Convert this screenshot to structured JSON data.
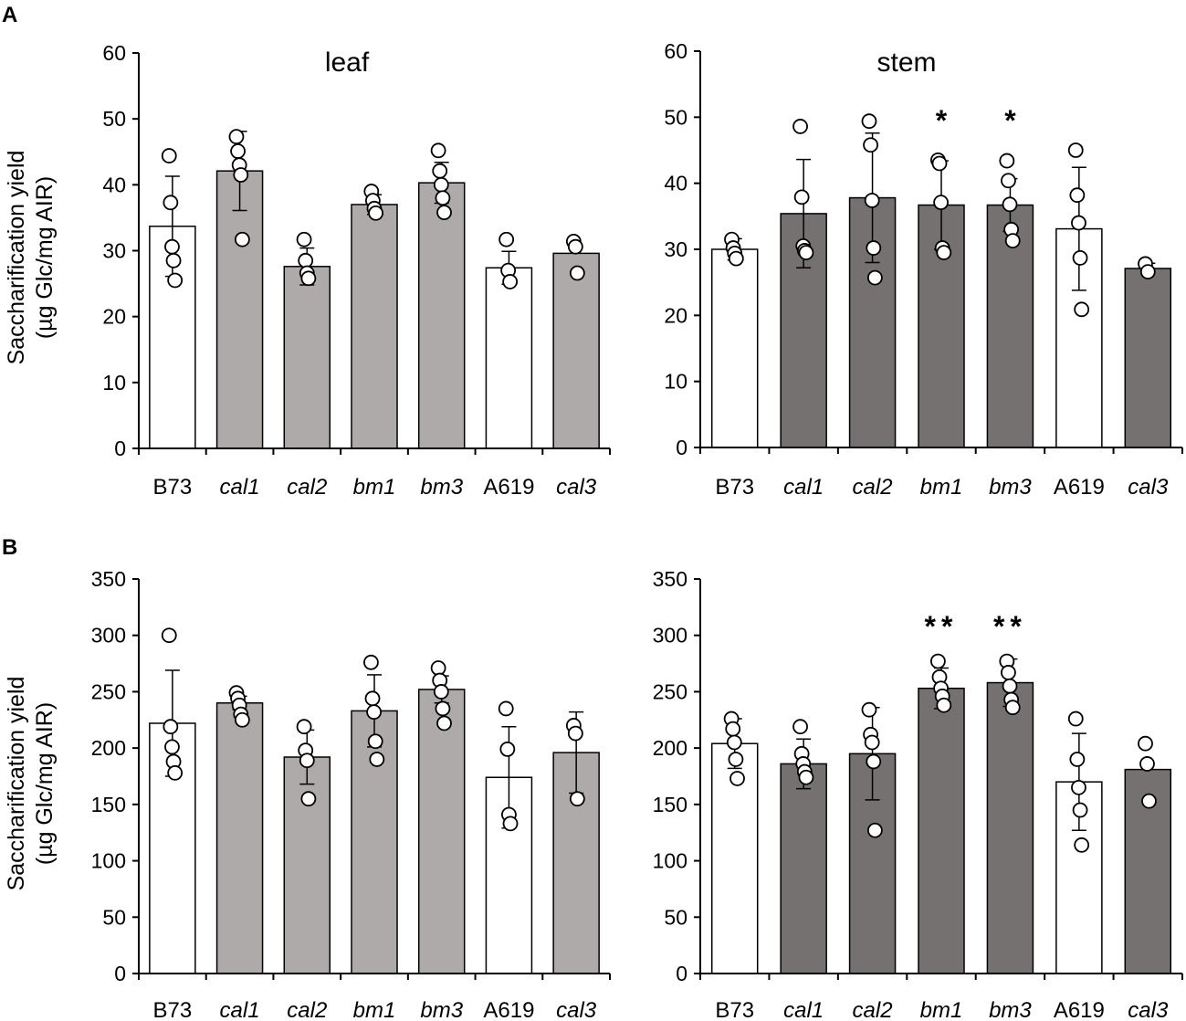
{
  "figure": {
    "panel_labels": [
      "A",
      "B"
    ],
    "ylabel_line1": "Saccharification yield",
    "ylabel_line2": "(µg Glc/mg AIR)"
  },
  "chart_data": [
    {
      "id": "A-leaf",
      "type": "bar",
      "panel": "A",
      "title": "leaf",
      "xlabel": "",
      "ylabel": "Saccharification yield (µg Glc/mg AIR)",
      "ylim": [
        0,
        60
      ],
      "yticks": [
        0,
        10,
        20,
        30,
        40,
        50,
        60
      ],
      "categories": [
        "B73",
        "cal1",
        "cal2",
        "bm1",
        "bm3",
        "A619",
        "cal3"
      ],
      "italic": [
        false,
        true,
        true,
        true,
        true,
        false,
        true
      ],
      "values": [
        33.7,
        42.1,
        27.6,
        37.0,
        40.3,
        27.4,
        29.6
      ],
      "errors": [
        7.6,
        6.0,
        2.8,
        1.5,
        3.1,
        2.5,
        0
      ],
      "fill_colors": [
        "#ffffff",
        "#aeaaaa",
        "#aeaaaa",
        "#aeaaaa",
        "#aeaaaa",
        "#ffffff",
        "#aeaaaa"
      ],
      "points": [
        [
          44.4,
          37.3,
          30.6,
          28.5,
          25.5
        ],
        [
          47.3,
          45.1,
          43.0,
          41.5,
          31.7
        ],
        [
          31.7,
          28.5,
          26.6,
          25.8
        ],
        [
          39.0,
          37.6,
          36.4,
          35.7
        ],
        [
          45.2,
          42.1,
          40.0,
          38.0,
          35.8
        ],
        [
          31.7,
          27.0,
          25.3
        ],
        [
          31.4,
          30.6,
          26.6
        ]
      ],
      "significance": [
        "",
        "",
        "",
        "",
        "",
        "",
        ""
      ]
    },
    {
      "id": "A-stem",
      "type": "bar",
      "panel": "A",
      "title": "stem",
      "xlabel": "",
      "ylabel": "",
      "ylim": [
        0,
        60
      ],
      "yticks": [
        0,
        10,
        20,
        30,
        40,
        50,
        60
      ],
      "categories": [
        "B73",
        "cal1",
        "cal2",
        "bm1",
        "bm3",
        "A619",
        "cal3"
      ],
      "italic": [
        false,
        true,
        true,
        true,
        true,
        false,
        true
      ],
      "values": [
        30.0,
        35.4,
        37.8,
        36.7,
        36.7,
        33.1,
        27.1
      ],
      "errors": [
        1.6,
        8.2,
        9.8,
        6.7,
        4.0,
        9.3,
        0.8
      ],
      "fill_colors": [
        "#ffffff",
        "#767171",
        "#767171",
        "#767171",
        "#767171",
        "#ffffff",
        "#767171"
      ],
      "points": [
        [
          31.5,
          30.2,
          29.4,
          28.6
        ],
        [
          48.6,
          37.9,
          30.5,
          29.8,
          29.5
        ],
        [
          49.4,
          45.8,
          37.4,
          30.2,
          25.7
        ],
        [
          43.5,
          43.0,
          37.1,
          30.2,
          29.5
        ],
        [
          43.4,
          40.4,
          36.8,
          33.0,
          31.3
        ],
        [
          45.0,
          38.2,
          34.0,
          28.7,
          20.9
        ],
        [
          27.8,
          26.6
        ]
      ],
      "significance": [
        "",
        "",
        "",
        "*",
        "*",
        "",
        ""
      ]
    },
    {
      "id": "B-leaf",
      "type": "bar",
      "panel": "B",
      "title": "",
      "xlabel": "",
      "ylabel": "Saccharification yield (µg Glc/mg AIR)",
      "ylim": [
        0,
        350
      ],
      "yticks": [
        0,
        50,
        100,
        150,
        200,
        250,
        300,
        350
      ],
      "categories": [
        "B73",
        "cal1",
        "cal2",
        "bm1",
        "bm3",
        "A619",
        "cal3"
      ],
      "italic": [
        false,
        true,
        true,
        true,
        true,
        false,
        true
      ],
      "values": [
        222,
        240,
        192,
        233,
        252,
        174,
        196
      ],
      "errors": [
        47,
        6,
        24,
        32,
        12,
        45,
        36
      ],
      "fill_colors": [
        "#ffffff",
        "#aeaaaa",
        "#aeaaaa",
        "#aeaaaa",
        "#aeaaaa",
        "#ffffff",
        "#aeaaaa"
      ],
      "points": [
        [
          300,
          219,
          201,
          188,
          178
        ],
        [
          249,
          244,
          238,
          230,
          225
        ],
        [
          219,
          198,
          189,
          155
        ],
        [
          276,
          244,
          232,
          206,
          190
        ],
        [
          271,
          260,
          250,
          235,
          222
        ],
        [
          235,
          199,
          141,
          133
        ],
        [
          220,
          213,
          155
        ]
      ],
      "significance": [
        "",
        "",
        "",
        "",
        "",
        "",
        ""
      ]
    },
    {
      "id": "B-stem",
      "type": "bar",
      "panel": "B",
      "title": "",
      "xlabel": "",
      "ylabel": "",
      "ylim": [
        0,
        350
      ],
      "yticks": [
        0,
        50,
        100,
        150,
        200,
        250,
        300,
        350
      ],
      "categories": [
        "B73",
        "cal1",
        "cal2",
        "bm1",
        "bm3",
        "A619",
        "cal3"
      ],
      "italic": [
        false,
        true,
        true,
        true,
        true,
        false,
        true
      ],
      "values": [
        204,
        186,
        195,
        253,
        258,
        170,
        181
      ],
      "errors": [
        22,
        22,
        41,
        18,
        21,
        43,
        0
      ],
      "fill_colors": [
        "#ffffff",
        "#767171",
        "#767171",
        "#767171",
        "#767171",
        "#ffffff",
        "#767171"
      ],
      "points": [
        [
          226,
          217,
          205,
          190,
          173
        ],
        [
          219,
          195,
          186,
          179,
          174
        ],
        [
          234,
          212,
          205,
          188,
          127
        ],
        [
          277,
          263,
          253,
          246,
          238
        ],
        [
          277,
          267,
          255,
          243,
          236
        ],
        [
          226,
          190,
          165,
          145,
          114
        ],
        [
          204,
          186,
          153
        ]
      ],
      "significance": [
        "",
        "",
        "",
        "**",
        "**",
        "",
        ""
      ]
    }
  ]
}
